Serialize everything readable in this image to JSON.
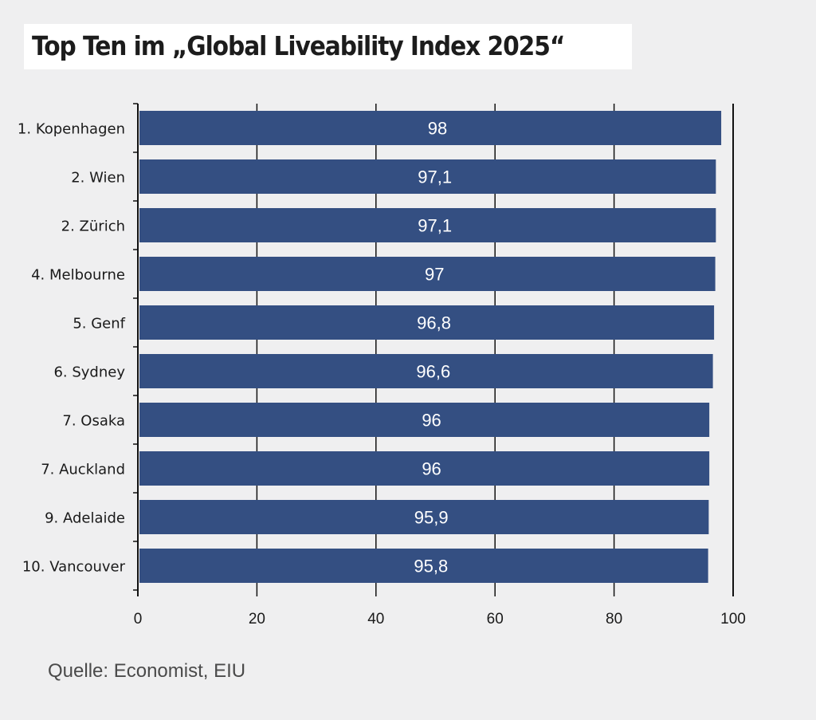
{
  "title": "Top Ten im „Global Liveability Index 2025“",
  "source": "Quelle: Economist, EIU",
  "colors": {
    "bar": "#344f82",
    "background": "#efeff0",
    "gridline": "#111111"
  },
  "chart_data": {
    "type": "bar",
    "orientation": "horizontal",
    "title": "Top Ten im „Global Liveability Index 2025“",
    "categories": [
      "1. Kopenhagen",
      "2. Wien",
      "2. Zürich",
      "4. Melbourne",
      "5. Genf",
      "6. Sydney",
      "7. Osaka",
      "7. Auckland",
      "9. Adelaide",
      "10. Vancouver"
    ],
    "values": [
      98,
      97.1,
      97.1,
      97,
      96.8,
      96.6,
      96,
      96,
      95.9,
      95.8
    ],
    "value_labels": [
      "98",
      "97,1",
      "97,1",
      "97",
      "96,8",
      "96,6",
      "96",
      "96",
      "95,9",
      "95,8"
    ],
    "x_ticks": [
      "0",
      "20",
      "40",
      "60",
      "80",
      "100"
    ],
    "xlim": [
      0,
      100
    ],
    "xlabel": "",
    "ylabel": "",
    "grid": true,
    "legend": "none"
  }
}
